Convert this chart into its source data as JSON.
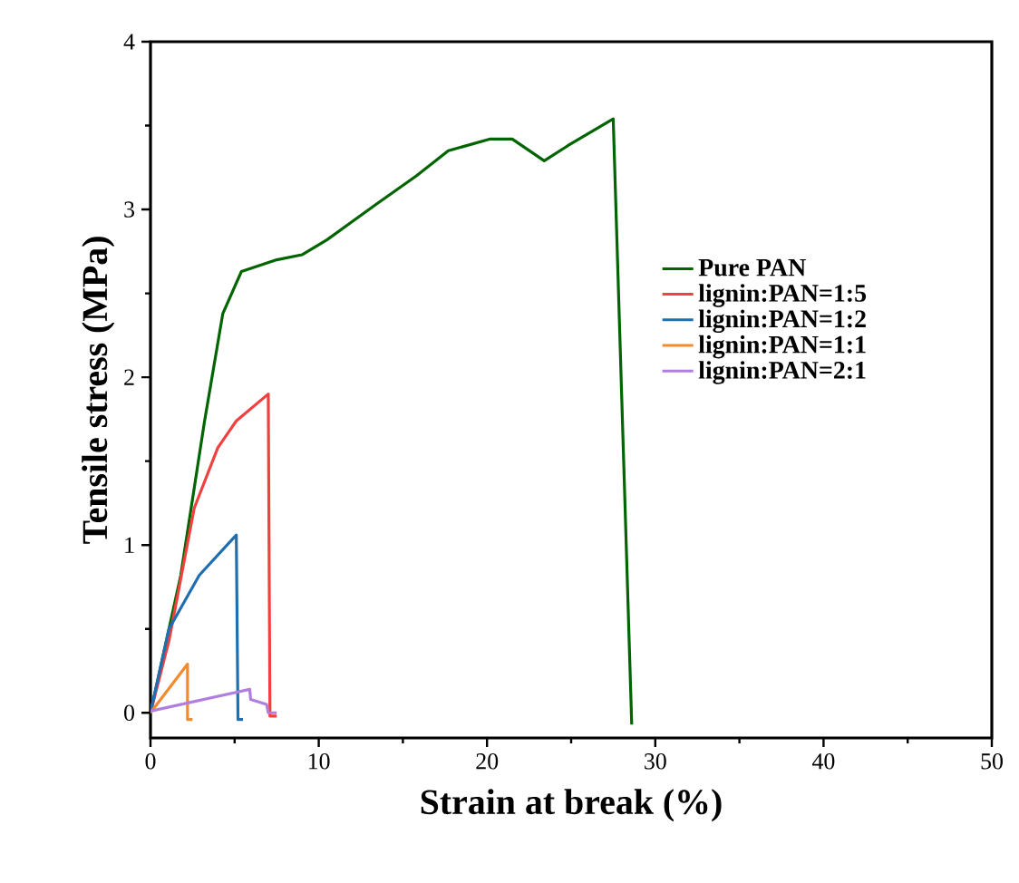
{
  "chart_data": {
    "type": "line",
    "xlabel": "Strain at break (%)",
    "ylabel": "Tensile stress (MPa)",
    "xlim": [
      0,
      50
    ],
    "ylim": [
      -0.15,
      4
    ],
    "xticks": [
      0,
      10,
      20,
      30,
      40,
      50
    ],
    "yticks": [
      0,
      1,
      2,
      3,
      4
    ],
    "legend": "right",
    "grid": false,
    "marker": "none",
    "line_style": "solid",
    "series": [
      {
        "name": "Pure PAN",
        "color": "#006400",
        "x": [
          0,
          1.8,
          3.2,
          4.3,
          5.4,
          7.5,
          9.0,
          10.5,
          13.4,
          15.8,
          17.7,
          20.2,
          21.5,
          23.4,
          24.8,
          27.5,
          28.6
        ],
        "values": [
          0,
          0.82,
          1.73,
          2.38,
          2.63,
          2.7,
          2.73,
          2.82,
          3.03,
          3.2,
          3.35,
          3.42,
          3.42,
          3.29,
          3.38,
          3.54,
          -0.07
        ]
      },
      {
        "name": "lignin:PAN=1:5",
        "color": "#f04040",
        "x": [
          0,
          1.1,
          2.6,
          4.0,
          5.1,
          7.0,
          7.1,
          7.5
        ],
        "values": [
          0,
          0.43,
          1.22,
          1.58,
          1.74,
          1.9,
          -0.02,
          -0.02
        ]
      },
      {
        "name": "lignin:PAN=1:2",
        "color": "#1f6fb0",
        "x": [
          0,
          1.1,
          2.9,
          5.1,
          5.2,
          5.5
        ],
        "values": [
          0,
          0.5,
          0.82,
          1.06,
          -0.04,
          -0.04
        ]
      },
      {
        "name": "lignin:PAN=1:1",
        "color": "#f28a30",
        "x": [
          0,
          2.2,
          2.2,
          2.5
        ],
        "values": [
          0,
          0.29,
          -0.04,
          -0.04
        ]
      },
      {
        "name": "lignin:PAN=2:1",
        "color": "#b07ee0",
        "x": [
          0,
          5.9,
          5.95,
          6.9,
          7.0,
          7.5
        ],
        "values": [
          0.01,
          0.14,
          0.08,
          0.05,
          0.0,
          0.0
        ]
      }
    ]
  }
}
